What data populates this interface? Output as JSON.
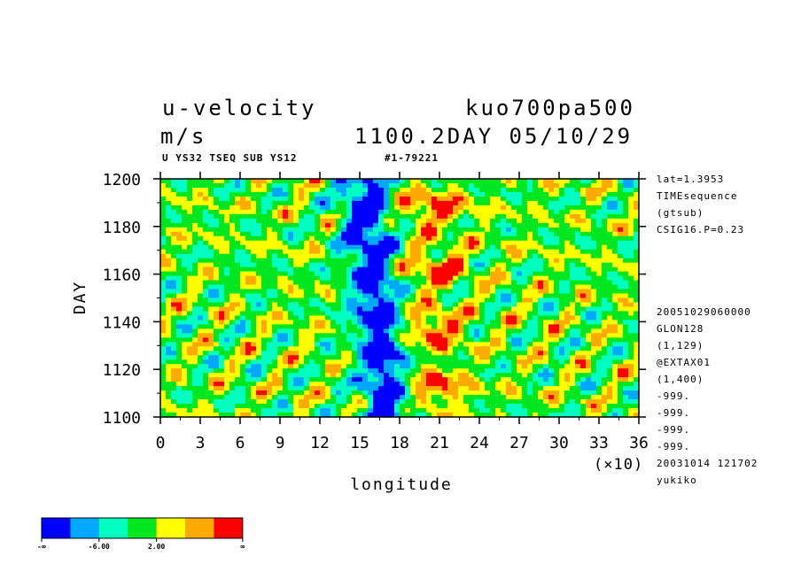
{
  "header": {
    "variable": "u-velocity",
    "units": "m/s",
    "experiment": "kuo700pa500",
    "time_stamp": "1100.2DAY 05/10/29",
    "subtitle_left": "U YS32 TSEQ SUB YS12",
    "subtitle_mid": "#1-79221"
  },
  "side_info": {
    "top": [
      "lat=1.3953",
      "TIMEsequence",
      "(gtsub)",
      "CSIG16.P=0.23"
    ],
    "bottom": [
      "20051029060000",
      "GLON128",
      "(1,129)",
      "@EXTAX01",
      "(1,400)",
      "-999.",
      "-999.",
      "-999.",
      "-999.",
      "20031014 121702",
      "yukiko"
    ]
  },
  "colorbar": {
    "colors": [
      "#0000ff",
      "#00a8ff",
      "#00ffc0",
      "#00e620",
      "#ffff00",
      "#ffaa00",
      "#ff0000"
    ],
    "labels": [
      "-∞",
      "-6.00",
      "2.00",
      "∞"
    ]
  },
  "chart_data": {
    "type": "heatmap",
    "title": "u-velocity",
    "xlabel": "longitude",
    "ylabel": "DAY",
    "x_multiplier": "(×10)",
    "xlim": [
      0,
      36
    ],
    "ylim": [
      1100,
      1200
    ],
    "x_ticks": [
      0,
      3,
      6,
      9,
      12,
      15,
      18,
      21,
      24,
      27,
      30,
      33,
      36
    ],
    "y_ticks": [
      1100,
      1120,
      1140,
      1160,
      1180,
      1200
    ],
    "levels": [
      "-inf",
      -6.0,
      2.0,
      "inf"
    ],
    "colormap": [
      "#0000ff",
      "#00a8ff",
      "#00ffc0",
      "#00e620",
      "#ffff00",
      "#ffaa00",
      "#ff0000"
    ],
    "features": [
      {
        "description": "easterly (blue) band",
        "x_range": [
          14,
          18
        ],
        "y_range": [
          1100,
          1200
        ]
      },
      {
        "description": "westerly (red/orange) band",
        "x_range": [
          18,
          24
        ],
        "y_range": [
          1100,
          1200
        ]
      }
    ]
  }
}
